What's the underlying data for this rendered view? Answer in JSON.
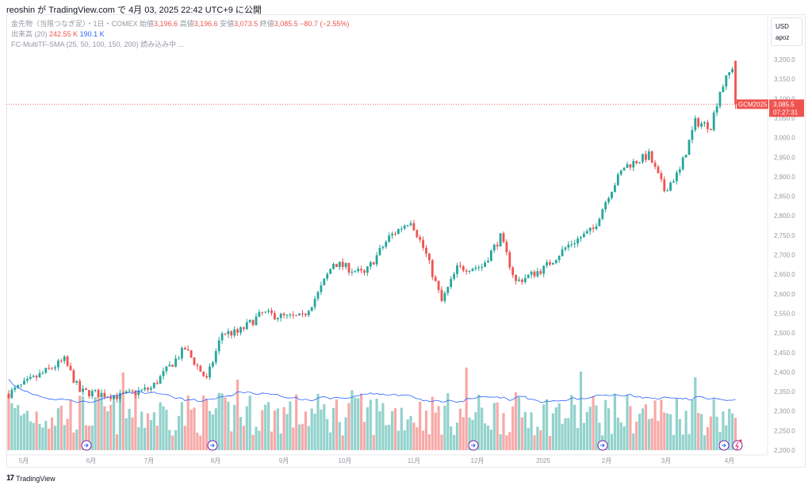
{
  "title": "reoshin が TradingView.com で 4月 03, 2025 22:42 UTC+9 に公開",
  "legend": {
    "symbol": "金先物（当限つなぎ足）・1日・COMEX",
    "open_label": "始値",
    "open": "3,196.6",
    "high_label": "高値",
    "high": "3,196.6",
    "low_label": "安値",
    "low": "3,073.5",
    "close_label": "終値",
    "close": "3,085.5",
    "change": "−80.7 (−2.55%)",
    "volume_label": "出来高 (20)",
    "volume": "242.55 K",
    "volume_ma": "190.1 K",
    "indicator": "FC-MultiTF-SMA (25, 50, 100, 150, 200) 読み込み中 ..."
  },
  "currency": "USD",
  "scale_mode": "apoz",
  "price_tag": {
    "symbol": "GCM2025",
    "price": "3,085.5",
    "countdown": "07:27:31"
  },
  "price_axis": [
    "3,200.0",
    "3,150.0",
    "3,100.0",
    "3,050.0",
    "3,000.0",
    "2,950.0",
    "2,900.0",
    "2,850.0",
    "2,800.0",
    "2,750.0",
    "2,700.0",
    "2,650.0",
    "2,600.0",
    "2,550.0",
    "2,500.0",
    "2,450.0",
    "2,400.0",
    "2,350.0",
    "2,300.0",
    "2,250.0",
    "2,200.0"
  ],
  "time_axis": [
    "5月",
    "6月",
    "7月",
    "8月",
    "9月",
    "10月",
    "11月",
    "12月",
    "2025",
    "2月",
    "3月",
    "4月"
  ],
  "brand": "TradingView",
  "colors": {
    "up": "#26a69a",
    "down": "#ef5350",
    "ma": "#2962ff"
  },
  "chart_data": {
    "type": "candlestick",
    "price_range": [
      2200,
      3200
    ],
    "current_price": 3085.5,
    "close_waypoints": [
      [
        0,
        2345
      ],
      [
        18,
        2430
      ],
      [
        23,
        2350
      ],
      [
        36,
        2338
      ],
      [
        46,
        2358
      ],
      [
        57,
        2460
      ],
      [
        64,
        2380
      ],
      [
        69,
        2500
      ],
      [
        74,
        2500
      ],
      [
        82,
        2550
      ],
      [
        90,
        2540
      ],
      [
        95,
        2540
      ],
      [
        100,
        2600
      ],
      [
        105,
        2680
      ],
      [
        115,
        2650
      ],
      [
        123,
        2745
      ],
      [
        130,
        2790
      ],
      [
        135,
        2700
      ],
      [
        140,
        2580
      ],
      [
        145,
        2665
      ],
      [
        153,
        2670
      ],
      [
        159,
        2745
      ],
      [
        164,
        2630
      ],
      [
        173,
        2665
      ],
      [
        181,
        2725
      ],
      [
        189,
        2765
      ],
      [
        194,
        2855
      ],
      [
        199,
        2925
      ],
      [
        207,
        2955
      ],
      [
        212,
        2865
      ],
      [
        217,
        2915
      ],
      [
        222,
        3040
      ],
      [
        227,
        3030
      ],
      [
        230,
        3120
      ],
      [
        233,
        3165
      ],
      [
        235,
        3196.6
      ]
    ],
    "last_candle": {
      "open": 3196.6,
      "high": 3196.6,
      "low": 3073.5,
      "close": 3085.5
    }
  }
}
